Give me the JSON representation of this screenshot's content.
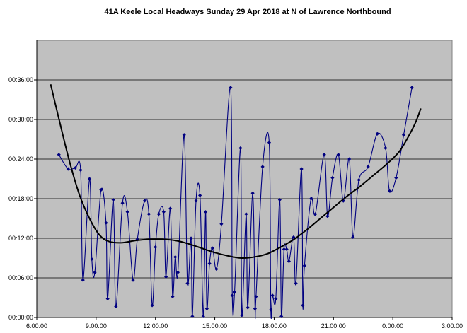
{
  "chart_data": {
    "type": "line",
    "title": "41A Keele Local Headways Sunday 29 Apr 2018 at N of Lawrence Northbound",
    "xlabel": "",
    "ylabel": "",
    "x_range": [
      "6:00:00",
      "3:00:00"
    ],
    "y_range": [
      "00:00:00",
      "00:42:00"
    ],
    "grid": "horizontal",
    "legend": "none",
    "x_ticks": [
      "6:00:00",
      "9:00:00",
      "12:00:00",
      "15:00:00",
      "18:00:00",
      "21:00:00",
      "0:00:00",
      "3:00:00"
    ],
    "y_ticks": [
      "00:00:00",
      "00:06:00",
      "00:12:00",
      "00:18:00",
      "00:24:00",
      "00:30:00",
      "00:36:00"
    ],
    "colors": {
      "plot_bg": "#c0c0c0",
      "series": "#000080",
      "trend": "#000000"
    },
    "series": [
      {
        "type": "scatter-smooth",
        "points": [
          [
            "7:07",
            "00:24:40"
          ],
          [
            "7:35",
            "00:22:30"
          ],
          [
            "7:57",
            "00:22:40"
          ],
          [
            "8:13",
            "00:22:20"
          ],
          [
            "8:20",
            "00:05:40"
          ],
          [
            "8:40",
            "00:21:00"
          ],
          [
            "8:47",
            "00:08:50"
          ],
          [
            "8:56",
            "00:06:50"
          ],
          [
            "9:15",
            "00:19:20"
          ],
          [
            "9:30",
            "00:14:20"
          ],
          [
            "9:35",
            "00:02:50"
          ],
          [
            "9:52",
            "00:17:50"
          ],
          [
            "10:00",
            "00:01:40"
          ],
          [
            "10:20",
            "00:17:20"
          ],
          [
            "10:35",
            "00:16:00"
          ],
          [
            "10:52",
            "00:05:40"
          ],
          [
            "11:05",
            "00:11:50"
          ],
          [
            "11:27",
            "00:17:40"
          ],
          [
            "11:40",
            "00:15:40"
          ],
          [
            "11:50",
            "00:01:50"
          ],
          [
            "12:00",
            "00:10:40"
          ],
          [
            "12:10",
            "00:15:40"
          ],
          [
            "12:25",
            "00:16:00"
          ],
          [
            "12:32",
            "00:06:10"
          ],
          [
            "12:45",
            "00:16:30"
          ],
          [
            "12:52",
            "00:03:10"
          ],
          [
            "13:00",
            "00:09:10"
          ],
          [
            "13:08",
            "00:06:50"
          ],
          [
            "13:27",
            "00:27:40"
          ],
          [
            "13:37",
            "00:05:10"
          ],
          [
            "13:48",
            "00:12:00"
          ],
          [
            "13:52",
            "00:00:10"
          ],
          [
            "14:03",
            "00:17:40"
          ],
          [
            "14:15",
            "00:18:30"
          ],
          [
            "14:25",
            "00:00:10"
          ],
          [
            "14:32",
            "00:16:00"
          ],
          [
            "14:36",
            "00:01:20"
          ],
          [
            "14:44",
            "00:08:10"
          ],
          [
            "14:53",
            "00:10:30"
          ],
          [
            "15:05",
            "00:07:20"
          ],
          [
            "15:20",
            "00:14:10"
          ],
          [
            "15:48",
            "00:34:50"
          ],
          [
            "15:53",
            "00:03:20"
          ],
          [
            "16:00",
            "00:03:50"
          ],
          [
            "16:18",
            "00:25:40"
          ],
          [
            "16:22",
            "00:00:20"
          ],
          [
            "16:35",
            "00:15:40"
          ],
          [
            "16:40",
            "00:01:30"
          ],
          [
            "16:55",
            "00:18:50"
          ],
          [
            "17:02",
            "00:01:20"
          ],
          [
            "17:05",
            "00:03:10"
          ],
          [
            "17:25",
            "00:22:50"
          ],
          [
            "17:45",
            "00:26:30"
          ],
          [
            "17:50",
            "00:01:10"
          ],
          [
            "17:55",
            "00:03:20"
          ],
          [
            "18:05",
            "00:02:50"
          ],
          [
            "18:17",
            "00:17:50"
          ],
          [
            "18:22",
            "00:00:10"
          ],
          [
            "18:30",
            "00:10:20"
          ],
          [
            "18:38",
            "00:10:20"
          ],
          [
            "18:45",
            "00:08:30"
          ],
          [
            "18:59",
            "00:12:10"
          ],
          [
            "19:06",
            "00:05:10"
          ],
          [
            "19:23",
            "00:22:30"
          ],
          [
            "19:27",
            "00:01:50"
          ],
          [
            "19:32",
            "00:07:50"
          ],
          [
            "19:52",
            "00:18:00"
          ],
          [
            "20:05",
            "00:15:40"
          ],
          [
            "20:32",
            "00:24:40"
          ],
          [
            "20:42",
            "00:15:20"
          ],
          [
            "20:57",
            "00:21:10"
          ],
          [
            "21:15",
            "00:24:40"
          ],
          [
            "21:30",
            "00:17:40"
          ],
          [
            "21:48",
            "00:24:00"
          ],
          [
            "21:59",
            "00:12:10"
          ],
          [
            "22:17",
            "00:20:50"
          ],
          [
            "22:45",
            "00:22:50"
          ],
          [
            "23:13",
            "00:27:50"
          ],
          [
            "23:38",
            "00:25:40"
          ],
          [
            "23:50",
            "00:19:10"
          ],
          [
            "0:10",
            "00:21:10"
          ],
          [
            "0:33",
            "00:27:40"
          ],
          [
            "0:58",
            "00:34:50"
          ]
        ]
      },
      {
        "type": "trendline",
        "points": [
          [
            "6:42",
            "00:35:20"
          ],
          [
            "7:10",
            "00:29:30"
          ],
          [
            "7:40",
            "00:23:30"
          ],
          [
            "8:10",
            "00:18:30"
          ],
          [
            "8:40",
            "00:15:00"
          ],
          [
            "9:10",
            "00:12:30"
          ],
          [
            "9:40",
            "00:11:30"
          ],
          [
            "10:20",
            "00:11:20"
          ],
          [
            "11:00",
            "00:11:40"
          ],
          [
            "11:40",
            "00:11:50"
          ],
          [
            "12:20",
            "00:11:50"
          ],
          [
            "13:00",
            "00:11:40"
          ],
          [
            "13:40",
            "00:11:10"
          ],
          [
            "14:20",
            "00:10:30"
          ],
          [
            "15:00",
            "00:09:50"
          ],
          [
            "15:40",
            "00:09:20"
          ],
          [
            "16:20",
            "00:09:00"
          ],
          [
            "17:00",
            "00:09:10"
          ],
          [
            "17:40",
            "00:09:40"
          ],
          [
            "18:20",
            "00:10:40"
          ],
          [
            "19:00",
            "00:11:50"
          ],
          [
            "19:40",
            "00:13:20"
          ],
          [
            "20:20",
            "00:15:00"
          ],
          [
            "21:00",
            "00:16:40"
          ],
          [
            "21:40",
            "00:18:20"
          ],
          [
            "22:20",
            "00:19:50"
          ],
          [
            "23:00",
            "00:21:30"
          ],
          [
            "23:40",
            "00:23:10"
          ],
          [
            "0:20",
            "00:25:10"
          ],
          [
            "0:50",
            "00:27:40"
          ],
          [
            "1:10",
            "00:29:40"
          ],
          [
            "1:25",
            "00:31:40"
          ]
        ]
      }
    ]
  }
}
